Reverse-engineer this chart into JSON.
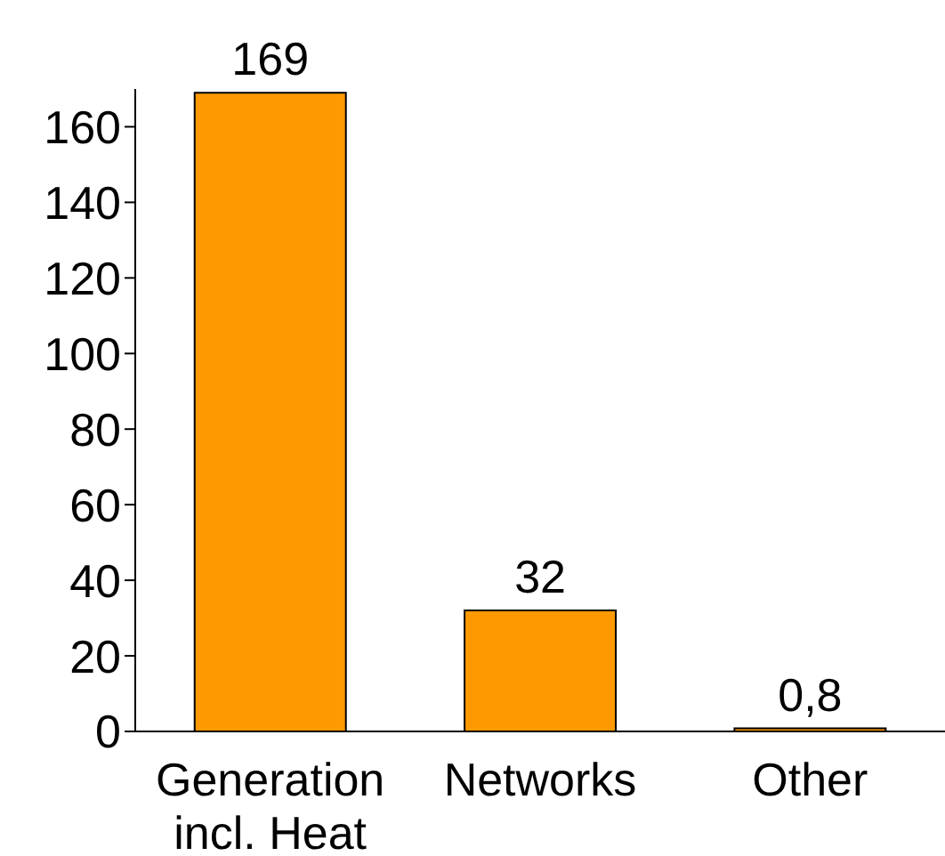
{
  "chart_data": {
    "type": "bar",
    "categories": [
      "Generation incl. Heat",
      "Networks",
      "Other"
    ],
    "values": [
      169,
      32,
      0.8
    ],
    "color": "#ff9900",
    "value_labels": [
      "169",
      "32",
      "0,8"
    ],
    "ylim": [
      0,
      170
    ],
    "yticks": [
      0,
      20,
      40,
      60,
      80,
      100,
      120,
      140,
      160
    ],
    "grid": false,
    "legend": false
  }
}
